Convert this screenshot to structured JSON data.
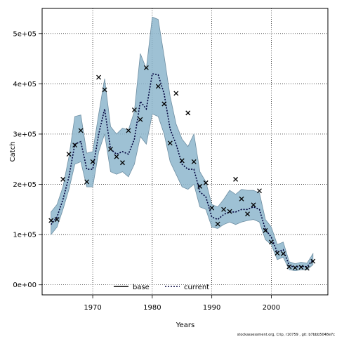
{
  "chart_data": {
    "type": "line",
    "xlabel": "Years",
    "ylabel": "Catch",
    "xlim": [
      1961.5,
      2009.5
    ],
    "ylim": [
      -20000,
      550000
    ],
    "x_ticks": [
      1970,
      1980,
      1990,
      2000
    ],
    "x_tick_labels": [
      "1970",
      "1980",
      "1990",
      "2000"
    ],
    "y_ticks": [
      0,
      100000,
      200000,
      300000,
      400000,
      500000
    ],
    "y_tick_labels": [
      "0e+00",
      "1e+05",
      "2e+05",
      "3e+05",
      "4e+05",
      "5e+05"
    ],
    "grid": true,
    "legend_position": "bottom-center",
    "watermark": "stockassessment.org, Crip, r10759 , git: b7bbb5048e7c",
    "series": [
      {
        "name": "base",
        "style": "solid",
        "color": "#000000",
        "x": [],
        "values": []
      },
      {
        "name": "current",
        "style": "dotted",
        "color": "#00003c",
        "band_color": "#8db6cc",
        "x": [
          1963,
          1964,
          1965,
          1966,
          1967,
          1968,
          1969,
          1970,
          1971,
          1972,
          1973,
          1974,
          1975,
          1976,
          1977,
          1978,
          1979,
          1980,
          1981,
          1982,
          1983,
          1984,
          1985,
          1986,
          1987,
          1988,
          1989,
          1990,
          1991,
          1992,
          1993,
          1994,
          1995,
          1996,
          1997,
          1998,
          1999,
          2000,
          2001,
          2002,
          2003,
          2004,
          2005,
          2006,
          2007
        ],
        "values": [
          120000,
          135000,
          170000,
          215000,
          280000,
          285000,
          230000,
          230000,
          300000,
          350000,
          270000,
          260000,
          265000,
          260000,
          290000,
          365000,
          350000,
          420000,
          418000,
          380000,
          310000,
          280000,
          240000,
          230000,
          230000,
          185000,
          175000,
          135000,
          130000,
          140000,
          145000,
          145000,
          150000,
          150000,
          155000,
          150000,
          110000,
          95000,
          65000,
          70000,
          38000,
          35000,
          37000,
          36000,
          50000
        ],
        "lower": [
          100000,
          115000,
          150000,
          190000,
          240000,
          245000,
          195000,
          195000,
          265000,
          300000,
          225000,
          220000,
          225000,
          215000,
          240000,
          295000,
          280000,
          340000,
          335000,
          300000,
          245000,
          220000,
          195000,
          190000,
          200000,
          155000,
          150000,
          115000,
          112000,
          120000,
          125000,
          120000,
          125000,
          128000,
          130000,
          125000,
          90000,
          80000,
          50000,
          55000,
          30000,
          28000,
          30000,
          30000,
          40000
        ],
        "upper": [
          145000,
          160000,
          195000,
          255000,
          335000,
          338000,
          262000,
          265000,
          340000,
          410000,
          315000,
          300000,
          312000,
          308000,
          345000,
          460000,
          430000,
          533000,
          528000,
          455000,
          375000,
          320000,
          290000,
          275000,
          300000,
          225000,
          205000,
          160000,
          155000,
          170000,
          188000,
          180000,
          190000,
          188000,
          188000,
          183000,
          130000,
          115000,
          80000,
          85000,
          46000,
          42000,
          45000,
          43000,
          62000
        ]
      }
    ],
    "observations": {
      "marker": "x",
      "x": [
        1963,
        1964,
        1965,
        1966,
        1967,
        1968,
        1969,
        1970,
        1971,
        1972,
        1973,
        1974,
        1975,
        1976,
        1977,
        1978,
        1979,
        1981,
        1982,
        1983,
        1984,
        1985,
        1986,
        1987,
        1988,
        1989,
        1990,
        1991,
        1992,
        1993,
        1994,
        1995,
        1996,
        1997,
        1998,
        1999,
        2000,
        2001,
        2002,
        2003,
        2004,
        2005,
        2006,
        2007
      ],
      "values": [
        128000,
        130000,
        210000,
        260000,
        278000,
        307000,
        205000,
        245000,
        413000,
        388000,
        270000,
        255000,
        243000,
        307000,
        348000,
        329000,
        432000,
        395000,
        360000,
        282000,
        381000,
        247000,
        342000,
        245000,
        196000,
        203000,
        153000,
        121000,
        150000,
        146000,
        210000,
        171000,
        141000,
        159000,
        187000,
        108000,
        85000,
        63000,
        62000,
        36000,
        34000,
        35000,
        33000,
        47000
      ]
    }
  }
}
